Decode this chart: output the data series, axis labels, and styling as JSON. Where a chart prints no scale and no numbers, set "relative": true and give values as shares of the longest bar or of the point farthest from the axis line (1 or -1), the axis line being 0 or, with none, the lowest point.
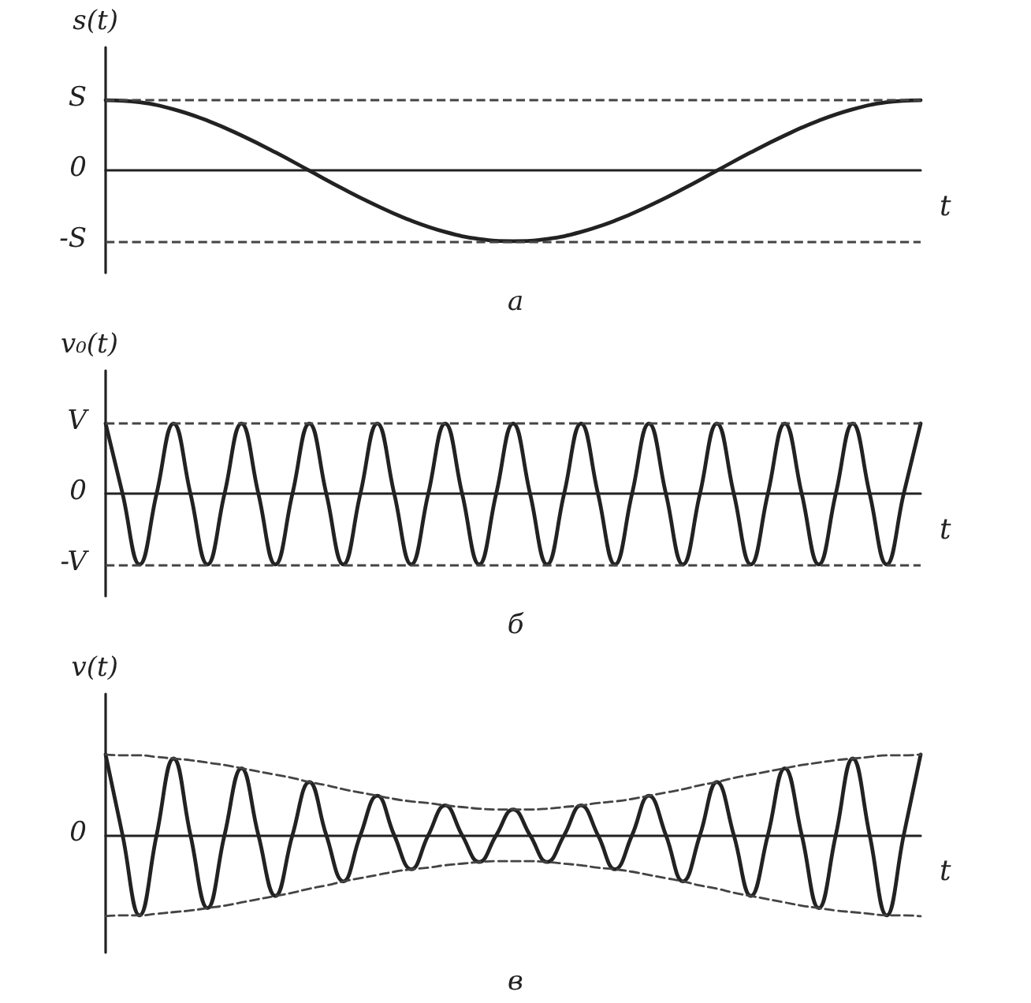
{
  "chart_data": [
    {
      "type": "line",
      "title": "а",
      "ylabel": "s(t)",
      "xlabel": "t",
      "marker": "none",
      "line_style": "solid",
      "categories": [
        null,
        null,
        null,
        null,
        null,
        null,
        null,
        null,
        null,
        null,
        null,
        null,
        null,
        null,
        null,
        null,
        null,
        null,
        null,
        null,
        null,
        null,
        null,
        null,
        null
      ],
      "series": [
        {
          "color": "#222222",
          "values": [
            1,
            0.97,
            0.87,
            0.71,
            0.5,
            0.26,
            0,
            -0.26,
            -0.5,
            -0.71,
            -0.87,
            -0.97,
            -1,
            -0.97,
            -0.87,
            -0.71,
            -0.5,
            -0.26,
            0,
            0.26,
            0.5,
            0.71,
            0.87,
            0.97,
            1
          ]
        }
      ],
      "relative": true,
      "annotations": [
        "S",
        "0",
        "-S"
      ],
      "ref_lines": [
        {
          "axis": "y",
          "value": 1,
          "color": "#444444",
          "line_style": "dashed"
        },
        {
          "axis": "y",
          "value": -1,
          "color": "#444444",
          "line_style": "dashed"
        }
      ]
    },
    {
      "type": "line",
      "title": "б",
      "ylabel": "v₀(t)",
      "xlabel": "t",
      "marker": "none",
      "line_style": "solid",
      "categories": [
        null,
        null,
        null,
        null,
        null,
        null,
        null,
        null,
        null,
        null,
        null,
        null,
        null,
        null,
        null,
        null,
        null,
        null,
        null,
        null,
        null,
        null,
        null,
        null,
        null,
        null,
        null,
        null,
        null,
        null,
        null,
        null,
        null,
        null,
        null,
        null,
        null,
        null,
        null,
        null,
        null,
        null,
        null,
        null,
        null,
        null,
        null,
        null,
        null
      ],
      "series": [
        {
          "color": "#222222",
          "values": [
            1,
            0,
            -1,
            0,
            1,
            0,
            -1,
            0,
            1,
            0,
            -1,
            0,
            1,
            0,
            -1,
            0,
            1,
            0,
            -1,
            0,
            1,
            0,
            -1,
            0,
            1,
            0,
            -1,
            0,
            1,
            0,
            -1,
            0,
            1,
            0,
            -1,
            0,
            1,
            0,
            -1,
            0,
            1,
            0,
            -1,
            0,
            1,
            0,
            -1,
            0,
            1
          ]
        }
      ],
      "relative": true,
      "annotations": [
        "V",
        "0",
        "-V"
      ],
      "ref_lines": [
        {
          "axis": "y",
          "value": 1,
          "color": "#444444",
          "line_style": "dashed"
        },
        {
          "axis": "y",
          "value": -1,
          "color": "#444444",
          "line_style": "dashed"
        }
      ]
    },
    {
      "type": "line",
      "title": "в",
      "ylabel": "v(t)",
      "xlabel": "t",
      "marker": "none",
      "line_style": "solid",
      "relative": true,
      "categories": [
        null,
        null,
        null,
        null,
        null,
        null,
        null,
        null,
        null,
        null,
        null,
        null,
        null,
        null,
        null,
        null,
        null,
        null,
        null,
        null,
        null,
        null,
        null,
        null,
        null,
        null,
        null,
        null,
        null,
        null,
        null,
        null,
        null,
        null,
        null,
        null,
        null,
        null,
        null,
        null,
        null,
        null,
        null,
        null,
        null,
        null,
        null,
        null,
        null
      ],
      "series": [
        {
          "color": "#222222",
          "values": [
            1.0,
            0,
            -0.99,
            0,
            0.95,
            0,
            -0.9,
            0,
            0.83,
            0,
            -0.75,
            0,
            0.66,
            0,
            -0.57,
            0,
            0.49,
            0,
            -0.42,
            0,
            0.37,
            0,
            -0.33,
            0,
            0.32,
            0,
            -0.33,
            0,
            0.37,
            0,
            -0.42,
            0,
            0.49,
            0,
            -0.57,
            0,
            0.66,
            0,
            -0.75,
            0,
            0.83,
            0,
            -0.9,
            0,
            0.95,
            0,
            -0.99,
            0,
            1.0
          ]
        },
        {
          "color": "#444444",
          "line_style": "dashed",
          "values": [
            1.0,
            0.99,
            0.99,
            0.97,
            0.95,
            0.93,
            0.9,
            0.87,
            0.83,
            0.79,
            0.75,
            0.71,
            0.66,
            0.62,
            0.57,
            0.53,
            0.49,
            0.45,
            0.42,
            0.4,
            0.37,
            0.35,
            0.33,
            0.32,
            0.32,
            0.32,
            0.33,
            0.35,
            0.37,
            0.4,
            0.42,
            0.45,
            0.49,
            0.53,
            0.57,
            0.62,
            0.66,
            0.71,
            0.75,
            0.79,
            0.83,
            0.87,
            0.9,
            0.93,
            0.95,
            0.97,
            0.99,
            0.99,
            1.0
          ]
        },
        {
          "color": "#444444",
          "line_style": "dashed",
          "values": [
            -1.0,
            -0.99,
            -0.99,
            -0.97,
            -0.95,
            -0.93,
            -0.9,
            -0.87,
            -0.83,
            -0.79,
            -0.75,
            -0.71,
            -0.66,
            -0.62,
            -0.57,
            -0.53,
            -0.49,
            -0.45,
            -0.42,
            -0.4,
            -0.37,
            -0.35,
            -0.33,
            -0.32,
            -0.32,
            -0.32,
            -0.33,
            -0.35,
            -0.37,
            -0.4,
            -0.42,
            -0.45,
            -0.49,
            -0.53,
            -0.57,
            -0.62,
            -0.66,
            -0.71,
            -0.75,
            -0.79,
            -0.83,
            -0.87,
            -0.9,
            -0.93,
            -0.95,
            -0.97,
            -0.99,
            -0.99,
            -1.0
          ]
        }
      ],
      "annotations": [
        "0"
      ]
    }
  ]
}
